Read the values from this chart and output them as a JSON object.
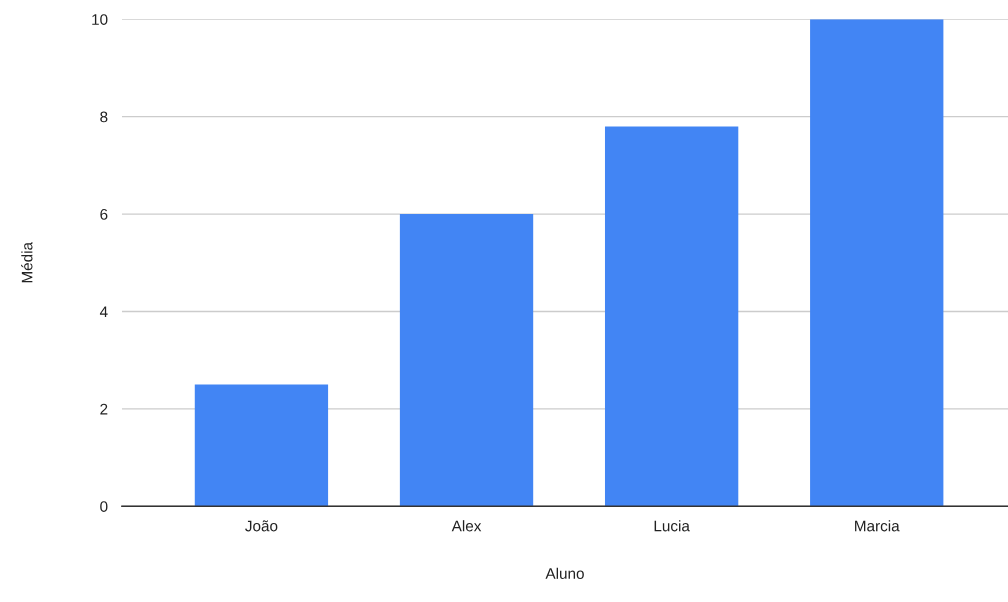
{
  "chart_data": {
    "type": "bar",
    "xlabel": "Aluno",
    "ylabel": "Média",
    "categories": [
      "João",
      "Alex",
      "Lucia",
      "Marcia"
    ],
    "values": [
      2.5,
      6,
      7.8,
      10
    ],
    "color": "#4285f4",
    "ylim": [
      0,
      10
    ],
    "yticks": [
      0,
      2,
      4,
      6,
      8,
      10
    ],
    "grid": "y",
    "legend": false
  }
}
